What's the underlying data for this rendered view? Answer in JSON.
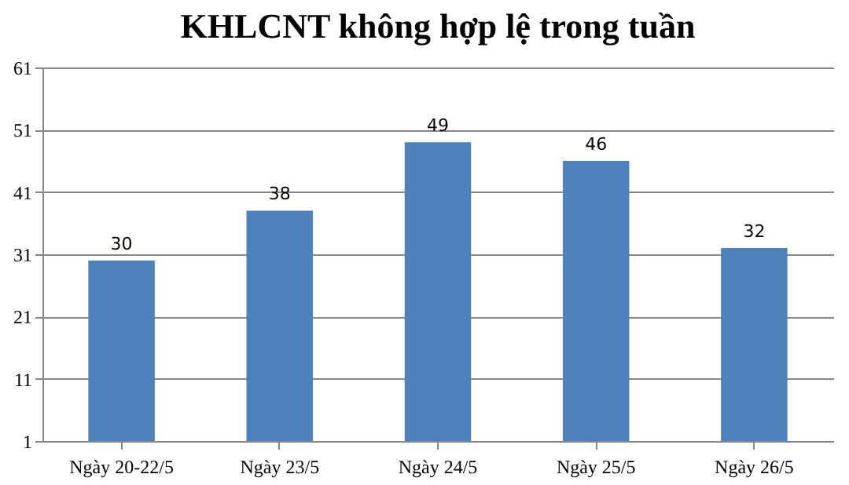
{
  "chart_data": {
    "type": "bar",
    "title": "KHLCNT không hợp lệ trong tuần",
    "categories": [
      "Ngày 20-22/5",
      "Ngày 23/5",
      "Ngày 24/5",
      "Ngày 25/5",
      "Ngày 26/5"
    ],
    "values": [
      30,
      38,
      49,
      46,
      32
    ],
    "color": "#4f81bd",
    "ylim": [
      1,
      61
    ],
    "yticks": [
      1,
      11,
      21,
      31,
      41,
      51,
      61
    ],
    "grid": "y",
    "data_labels": true
  }
}
